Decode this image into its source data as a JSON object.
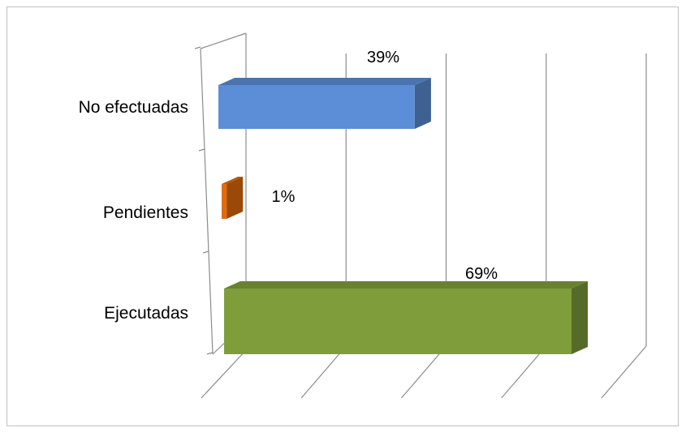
{
  "chart_data": {
    "type": "bar",
    "orientation": "horizontal",
    "three_d": true,
    "categories": [
      "No efectuadas",
      "Pendientes",
      "Ejecutadas"
    ],
    "values": [
      39,
      1,
      69
    ],
    "data_labels": [
      "39%",
      "1%",
      "69%"
    ],
    "colors": [
      "#5B8ED6",
      "#E36C0A",
      "#7F9E3B"
    ],
    "xlim": [
      0,
      100
    ],
    "gridlines": true,
    "legend": "none"
  }
}
